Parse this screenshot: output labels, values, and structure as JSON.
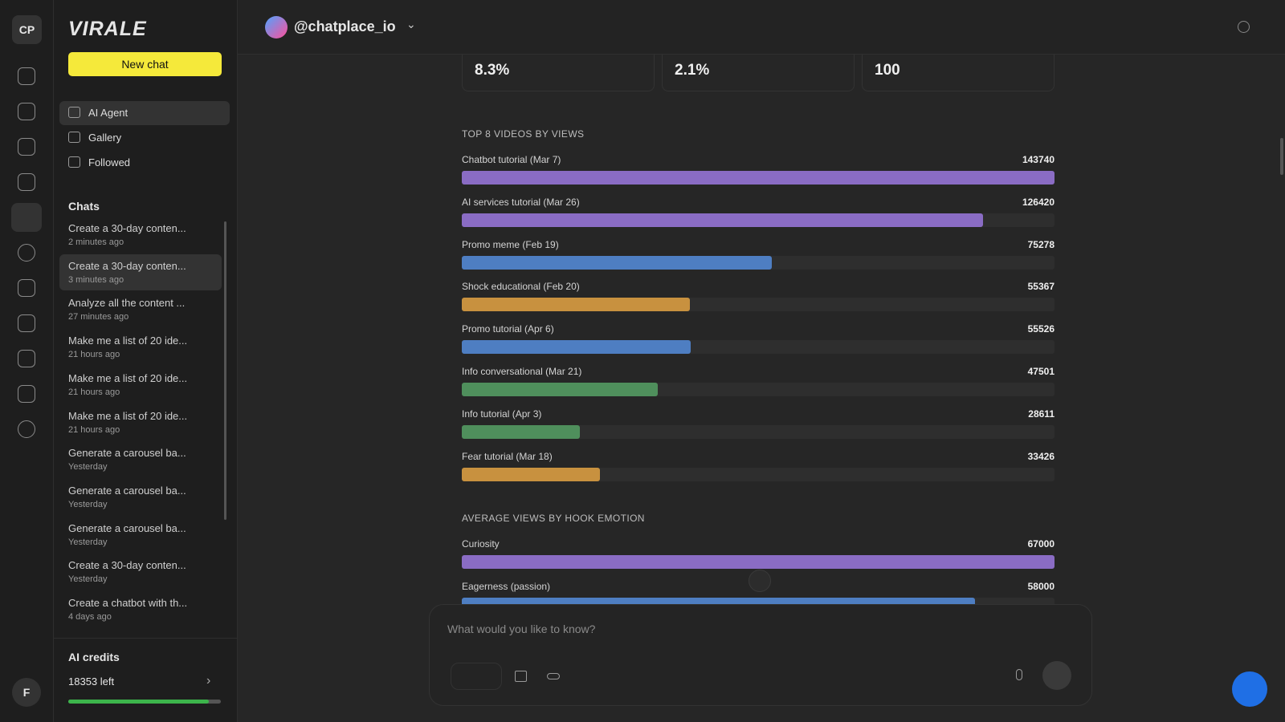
{
  "sidebar": {
    "avatar": "CP",
    "user_avatar": "F",
    "logo": "VIRALE",
    "new_chat": "New chat",
    "nav": [
      "AI Agent",
      "Gallery",
      "Followed"
    ],
    "chats_heading": "Chats",
    "chats": [
      {
        "title": "Create a 30-day conten...",
        "time": "2 minutes ago"
      },
      {
        "title": "Create a 30-day conten...",
        "time": "3 minutes ago"
      },
      {
        "title": "Analyze all the content ...",
        "time": "27 minutes ago"
      },
      {
        "title": "Make me a list of 20 ide...",
        "time": "21 hours ago"
      },
      {
        "title": "Make me a list of 20 ide...",
        "time": "21 hours ago"
      },
      {
        "title": "Make me a list of 20 ide...",
        "time": "21 hours ago"
      },
      {
        "title": "Generate a carousel ba...",
        "time": "Yesterday"
      },
      {
        "title": "Generate a carousel ba...",
        "time": "Yesterday"
      },
      {
        "title": "Generate a carousel ba...",
        "time": "Yesterday"
      },
      {
        "title": "Create a 30-day conten...",
        "time": "Yesterday"
      },
      {
        "title": "Create a chatbot with th...",
        "time": "4 days ago"
      }
    ],
    "credits_title": "AI credits",
    "credits_left": "18353 left"
  },
  "header": {
    "account": "@chatplace_io"
  },
  "stats": [
    "8.3%",
    "2.1%",
    "100"
  ],
  "chart_data": [
    {
      "type": "bar",
      "title": "TOP 8 VIDEOS BY VIEWS",
      "categories": [
        "Chatbot tutorial (Mar 7)",
        "AI services tutorial (Mar 26)",
        "Promo meme (Feb 19)",
        "Shock educational (Feb 20)",
        "Promo tutorial (Apr 6)",
        "Info conversational (Mar 21)",
        "Info tutorial (Apr 3)",
        "Fear tutorial (Mar 18)"
      ],
      "values": [
        143740,
        126420,
        75278,
        55367,
        55526,
        47501,
        28611,
        33426
      ],
      "colors": [
        "#8a6cc4",
        "#8a6cc4",
        "#4e7ec2",
        "#c8913f",
        "#4e7ec2",
        "#4f8f5c",
        "#4f8f5c",
        "#c8913f"
      ]
    },
    {
      "type": "bar",
      "title": "AVERAGE VIEWS BY HOOK EMOTION",
      "categories": [
        "Curiosity",
        "Eagerness (passion)"
      ],
      "values": [
        67000,
        58000
      ],
      "colors": [
        "#8a6cc4",
        "#4e7ec2"
      ]
    }
  ],
  "input": {
    "placeholder": "What would you like to know?"
  }
}
